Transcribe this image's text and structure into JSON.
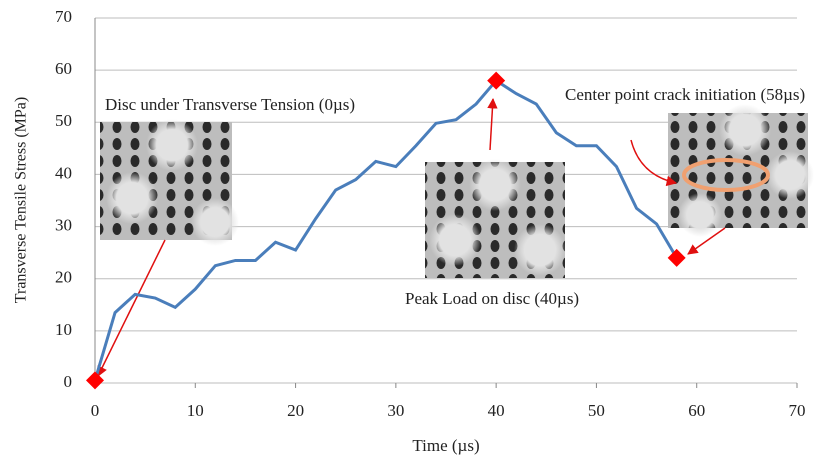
{
  "chart_data": {
    "type": "line",
    "xlabel": "Time (µs)",
    "ylabel": "Transverse Tensile Stress (MPa)",
    "x": [
      0,
      2,
      4,
      6,
      8,
      10,
      12,
      14,
      16,
      18,
      20,
      22,
      24,
      26,
      28,
      30,
      32,
      34,
      36,
      38,
      40,
      42,
      44,
      46,
      48,
      50,
      52,
      54,
      56,
      58
    ],
    "series": [
      {
        "color": "#4a7ebb",
        "values": [
          0.5,
          13.5,
          17,
          16.3,
          14.5,
          18,
          22.5,
          23.5,
          23.5,
          27,
          25.5,
          31.5,
          37,
          39,
          42.5,
          41.5,
          45.5,
          49.8,
          50.5,
          53.5,
          58,
          55.5,
          53.5,
          48,
          45.5,
          45.5,
          41.5,
          33.5,
          30.5,
          24
        ]
      },
      {
        "color": "#ff0000",
        "marker": "diamond",
        "x": [
          0,
          40,
          58
        ],
        "values": [
          0.5,
          58,
          24
        ]
      }
    ],
    "annotations": [
      {
        "text": "Disc under Transverse Tension (0µs)"
      },
      {
        "text": "Peak Load on disc (40µs)"
      },
      {
        "text": "Center point crack initiation (58µs)"
      }
    ],
    "xlim": [
      0,
      70
    ],
    "xticks": [
      0,
      10,
      20,
      30,
      40,
      50,
      60,
      70
    ],
    "ylim": [
      0,
      70
    ],
    "yticks": [
      0,
      10,
      20,
      30,
      40,
      50,
      60,
      70
    ],
    "grid": true
  }
}
